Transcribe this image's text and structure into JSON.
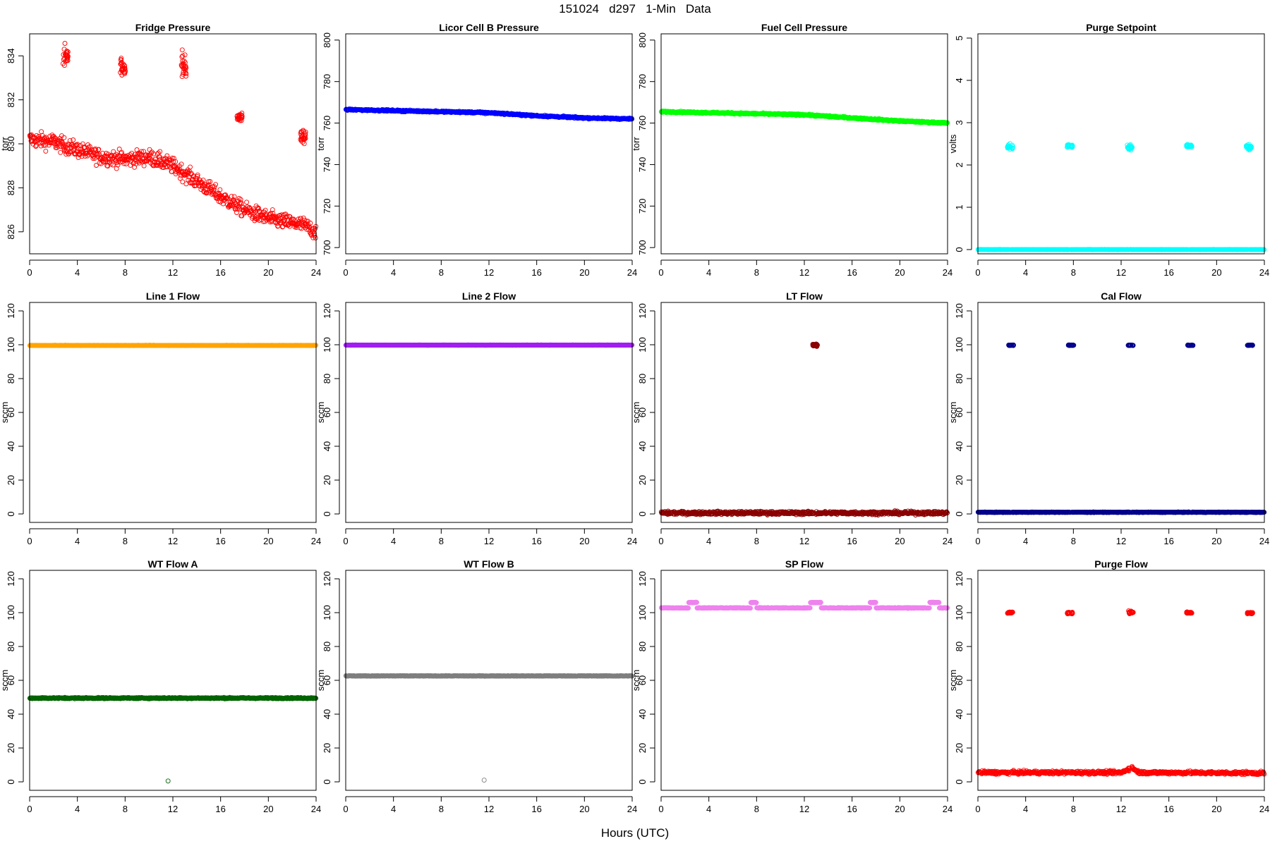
{
  "figure": {
    "title": "151024 d297 1-Min Data",
    "xlabel": "Hours (UTC)"
  },
  "chart_data": [
    {
      "type": "scatter",
      "title": "Fridge Pressure",
      "ylabel": "torr",
      "color": "#ff0000",
      "marker": "open-circle",
      "xlim": [
        0,
        24
      ],
      "ylim": [
        825,
        835
      ],
      "xticks": [
        0,
        4,
        8,
        12,
        16,
        20,
        24
      ],
      "yticks": [
        826,
        828,
        830,
        832,
        834
      ],
      "trend": [
        [
          0,
          830.2
        ],
        [
          2,
          830.1
        ],
        [
          3,
          829.9
        ],
        [
          6,
          829.4
        ],
        [
          8,
          829.3
        ],
        [
          10,
          829.4
        ],
        [
          12,
          829.0
        ],
        [
          14,
          828.3
        ],
        [
          16,
          827.6
        ],
        [
          18,
          827.0
        ],
        [
          20,
          826.6
        ],
        [
          23,
          826.3
        ],
        [
          24,
          826.0
        ]
      ],
      "noise": 0.35,
      "clusters": [
        [
          3.0,
          834.0,
          0.45
        ],
        [
          7.8,
          833.5,
          0.4
        ],
        [
          12.9,
          833.6,
          0.6
        ],
        [
          17.6,
          831.2,
          0.2
        ],
        [
          22.9,
          830.3,
          0.25
        ]
      ]
    },
    {
      "type": "scatter",
      "title": "Licor Cell B Pressure",
      "ylabel": "torr",
      "color": "#0000ff",
      "marker": "open-circle",
      "xlim": [
        0,
        24
      ],
      "ylim": [
        697,
        803
      ],
      "xticks": [
        0,
        4,
        8,
        12,
        16,
        20,
        24
      ],
      "yticks": [
        700,
        720,
        740,
        760,
        780,
        800
      ],
      "trend": [
        [
          0,
          766.5
        ],
        [
          4,
          766.0
        ],
        [
          8,
          765.5
        ],
        [
          12,
          765.0
        ],
        [
          16,
          763.5
        ],
        [
          20,
          762.5
        ],
        [
          24,
          762.0
        ]
      ],
      "noise": 0.35,
      "outliers": [
        [
          11.7,
          764.5
        ]
      ]
    },
    {
      "type": "scatter",
      "title": "Fuel Cell Pressure",
      "ylabel": "torr",
      "color": "#00ff00",
      "marker": "open-circle",
      "xlim": [
        0,
        24
      ],
      "ylim": [
        697,
        803
      ],
      "xticks": [
        0,
        4,
        8,
        12,
        16,
        20,
        24
      ],
      "yticks": [
        700,
        720,
        740,
        760,
        780,
        800
      ],
      "trend": [
        [
          0,
          765.5
        ],
        [
          4,
          765.0
        ],
        [
          8,
          764.5
        ],
        [
          12,
          764.0
        ],
        [
          16,
          762.5
        ],
        [
          20,
          761.0
        ],
        [
          24,
          760.0
        ]
      ],
      "noise": 0.35
    },
    {
      "type": "scatter",
      "title": "Purge Setpoint",
      "ylabel": "volts",
      "color": "#00ffff",
      "marker": "open-circle",
      "xlim": [
        0,
        24
      ],
      "ylim": [
        -0.1,
        5.1
      ],
      "xticks": [
        0,
        4,
        8,
        12,
        16,
        20,
        24
      ],
      "yticks": [
        0,
        1,
        2,
        3,
        4,
        5
      ],
      "trend": [
        [
          0,
          0
        ],
        [
          24,
          0
        ]
      ],
      "noise": 0.004,
      "clusters": [
        [
          2.7,
          2.43,
          0.06
        ],
        [
          7.7,
          2.45,
          0.03
        ],
        [
          12.7,
          2.42,
          0.06
        ],
        [
          17.7,
          2.45,
          0.03
        ],
        [
          22.7,
          2.42,
          0.06
        ]
      ]
    },
    {
      "type": "scatter",
      "title": "Line 1 Flow",
      "ylabel": "sccm",
      "color": "#ffa500",
      "marker": "open-circle",
      "xlim": [
        0,
        24
      ],
      "ylim": [
        -5,
        125
      ],
      "xticks": [
        0,
        4,
        8,
        12,
        16,
        20,
        24
      ],
      "yticks": [
        0,
        20,
        40,
        60,
        80,
        100,
        120
      ],
      "trend": [
        [
          0,
          99.6
        ],
        [
          24,
          99.6
        ]
      ],
      "noise": 0.1
    },
    {
      "type": "scatter",
      "title": "Line 2 Flow",
      "ylabel": "sccm",
      "color": "#a020f0",
      "marker": "open-circle",
      "xlim": [
        0,
        24
      ],
      "ylim": [
        -5,
        125
      ],
      "xticks": [
        0,
        4,
        8,
        12,
        16,
        20,
        24
      ],
      "yticks": [
        0,
        20,
        40,
        60,
        80,
        100,
        120
      ],
      "trend": [
        [
          0,
          99.8
        ],
        [
          24,
          99.8
        ]
      ],
      "noise": 0.1
    },
    {
      "type": "scatter",
      "title": "LT Flow",
      "ylabel": "sccm",
      "color": "#8b0000",
      "marker": "open-circle",
      "xlim": [
        0,
        24
      ],
      "ylim": [
        -5,
        125
      ],
      "xticks": [
        0,
        4,
        8,
        12,
        16,
        20,
        24
      ],
      "yticks": [
        0,
        20,
        40,
        60,
        80,
        100,
        120
      ],
      "trend": [
        [
          0,
          0.6
        ],
        [
          24,
          0.6
        ]
      ],
      "noise": 0.9,
      "clusters": [
        [
          12.9,
          99.8,
          0.8
        ]
      ]
    },
    {
      "type": "scatter",
      "title": "Cal Flow",
      "ylabel": "sccm",
      "color": "#00008b",
      "marker": "open-circle",
      "xlim": [
        0,
        24
      ],
      "ylim": [
        -5,
        125
      ],
      "xticks": [
        0,
        4,
        8,
        12,
        16,
        20,
        24
      ],
      "yticks": [
        0,
        20,
        40,
        60,
        80,
        100,
        120
      ],
      "trend": [
        [
          0,
          1.0
        ],
        [
          24,
          1.0
        ]
      ],
      "noise": 0.15,
      "clusters": [
        [
          2.8,
          99.7,
          0.15
        ],
        [
          7.8,
          99.7,
          0.15
        ],
        [
          12.8,
          99.7,
          0.15
        ],
        [
          17.8,
          99.7,
          0.15
        ],
        [
          22.8,
          99.7,
          0.15
        ]
      ]
    },
    {
      "type": "scatter",
      "title": "WT Flow A",
      "ylabel": "sccm",
      "color": "#006400",
      "marker": "open-circle",
      "xlim": [
        0,
        24
      ],
      "ylim": [
        -5,
        125
      ],
      "xticks": [
        0,
        4,
        8,
        12,
        16,
        20,
        24
      ],
      "yticks": [
        0,
        20,
        40,
        60,
        80,
        100,
        120
      ],
      "trend": [
        [
          0,
          49.5
        ],
        [
          24,
          49.5
        ]
      ],
      "noise": 0.35,
      "outliers": [
        [
          11.6,
          0.5
        ]
      ]
    },
    {
      "type": "scatter",
      "title": "WT Flow B",
      "ylabel": "sccm",
      "color": "#7f7f7f",
      "marker": "open-circle",
      "xlim": [
        0,
        24
      ],
      "ylim": [
        -5,
        125
      ],
      "xticks": [
        0,
        4,
        8,
        12,
        16,
        20,
        24
      ],
      "yticks": [
        0,
        20,
        40,
        60,
        80,
        100,
        120
      ],
      "trend": [
        [
          0,
          62.6
        ],
        [
          24,
          62.6
        ]
      ],
      "noise": 0.15,
      "outliers": [
        [
          11.6,
          1.0
        ]
      ]
    },
    {
      "type": "scatter",
      "title": "SP Flow",
      "ylabel": "sccm",
      "color": "#ee82ee",
      "marker": "open-circle",
      "xlim": [
        0,
        24
      ],
      "ylim": [
        -5,
        125
      ],
      "xticks": [
        0,
        4,
        8,
        12,
        16,
        20,
        24
      ],
      "yticks": [
        0,
        20,
        40,
        60,
        80,
        100,
        120
      ],
      "trend": [
        [
          0,
          102.8
        ],
        [
          24,
          102.8
        ]
      ],
      "noise": 0.2,
      "bumps": [
        [
          2.3,
          3.0,
          106.0
        ],
        [
          7.5,
          8.0,
          106.0
        ],
        [
          12.5,
          13.4,
          106.0
        ],
        [
          17.5,
          18.0,
          106.0
        ],
        [
          22.5,
          23.3,
          106.0
        ]
      ]
    },
    {
      "type": "scatter",
      "title": "Purge Flow",
      "ylabel": "sccm",
      "color": "#ff0000",
      "marker": "open-circle",
      "xlim": [
        0,
        24
      ],
      "ylim": [
        -5,
        125
      ],
      "xticks": [
        0,
        4,
        8,
        12,
        16,
        20,
        24
      ],
      "yticks": [
        0,
        20,
        40,
        60,
        80,
        100,
        120
      ],
      "trend": [
        [
          0,
          5.5
        ],
        [
          12,
          5.5
        ],
        [
          12.9,
          8.5
        ],
        [
          13.5,
          5.5
        ],
        [
          24,
          5.2
        ]
      ],
      "noise": 0.9,
      "clusters": [
        [
          2.7,
          100.0,
          0.5
        ],
        [
          7.7,
          99.8,
          0.4
        ],
        [
          12.8,
          100.3,
          0.9
        ],
        [
          17.7,
          100.0,
          0.5
        ],
        [
          22.8,
          99.8,
          0.5
        ]
      ]
    }
  ]
}
